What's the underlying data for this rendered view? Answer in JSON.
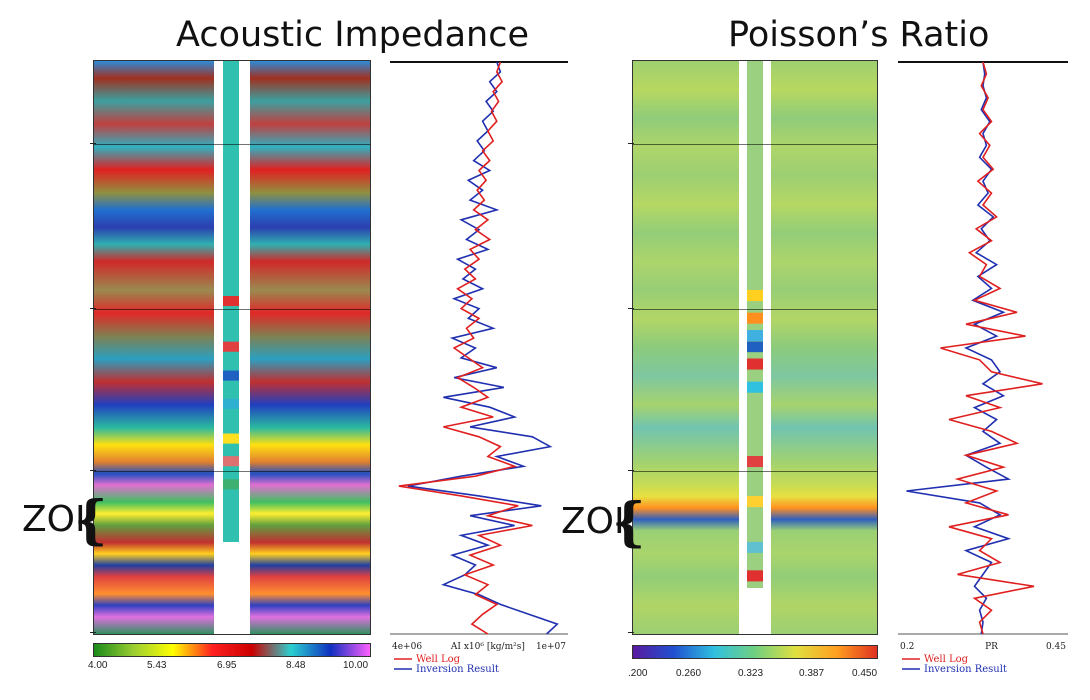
{
  "panels": [
    {
      "title": "Acoustic Impedance",
      "zoi_label": "ZOI",
      "colorbar": {
        "ticks": [
          "4.00",
          "5.43",
          "6.95",
          "8.48",
          "10.00"
        ],
        "colors": [
          "#1a8a1a",
          "#9acd32",
          "#ffff00",
          "#ff2020",
          "#cc0000",
          "#2ad0d0",
          "#1030c0",
          "#ff60ff"
        ]
      },
      "bands": [
        {
          "y": 0.0,
          "c": "#2e8cd8"
        },
        {
          "y": 0.03,
          "c": "#a03020"
        },
        {
          "y": 0.07,
          "c": "#3ca0a0"
        },
        {
          "y": 0.11,
          "c": "#c04040"
        },
        {
          "y": 0.15,
          "c": "#30b0c0"
        },
        {
          "y": 0.19,
          "c": "#e02020"
        },
        {
          "y": 0.23,
          "c": "#909040"
        },
        {
          "y": 0.26,
          "c": "#2070d0"
        },
        {
          "y": 0.29,
          "c": "#2b3fb0"
        },
        {
          "y": 0.32,
          "c": "#30b0b0"
        },
        {
          "y": 0.35,
          "c": "#d02828"
        },
        {
          "y": 0.4,
          "c": "#9a8a50"
        },
        {
          "y": 0.44,
          "c": "#e02828"
        },
        {
          "y": 0.48,
          "c": "#808050"
        },
        {
          "y": 0.52,
          "c": "#2aa0c0"
        },
        {
          "y": 0.56,
          "c": "#c03030"
        },
        {
          "y": 0.6,
          "c": "#2040c0"
        },
        {
          "y": 0.64,
          "c": "#2abaa0"
        },
        {
          "y": 0.67,
          "c": "#ffe010"
        },
        {
          "y": 0.7,
          "c": "#e08030"
        },
        {
          "y": 0.72,
          "c": "#2050c0"
        },
        {
          "y": 0.74,
          "c": "#e070d0"
        },
        {
          "y": 0.77,
          "c": "#40c060"
        },
        {
          "y": 0.79,
          "c": "#ffee30"
        },
        {
          "y": 0.81,
          "c": "#60a040"
        },
        {
          "y": 0.84,
          "c": "#c03030"
        },
        {
          "y": 0.86,
          "c": "#ffd020"
        },
        {
          "y": 0.88,
          "c": "#2040a0"
        },
        {
          "y": 0.9,
          "c": "#e04040"
        },
        {
          "y": 0.93,
          "c": "#ff9030"
        },
        {
          "y": 0.95,
          "c": "#2f40c0"
        },
        {
          "y": 0.97,
          "c": "#e070e0"
        },
        {
          "y": 1.0,
          "c": "#309060"
        }
      ],
      "well_column": {
        "fill_to": 0.84,
        "base": "#30c0b0",
        "accents": [
          {
            "y": 0.42,
            "c": "#e03030"
          },
          {
            "y": 0.5,
            "c": "#e04040"
          },
          {
            "y": 0.55,
            "c": "#2060c0"
          },
          {
            "y": 0.6,
            "c": "#2fb0d0"
          },
          {
            "y": 0.66,
            "c": "#ffe020"
          },
          {
            "y": 0.7,
            "c": "#e07070"
          },
          {
            "y": 0.74,
            "c": "#40b070"
          }
        ]
      },
      "log": {
        "axis_min": "4e+06",
        "axis_max": "1e+07",
        "axis_label": "AI x10⁶ [kg/m²s]",
        "legend": [
          {
            "label": "Well Log",
            "color": "#e02020"
          },
          {
            "label": "Inversion Result",
            "color": "#2030b0"
          }
        ],
        "red": [
          0.62,
          0.6,
          0.63,
          0.58,
          0.61,
          0.57,
          0.6,
          0.55,
          0.58,
          0.52,
          0.56,
          0.5,
          0.54,
          0.49,
          0.53,
          0.47,
          0.55,
          0.48,
          0.56,
          0.45,
          0.5,
          0.42,
          0.48,
          0.38,
          0.46,
          0.4,
          0.5,
          0.43,
          0.47,
          0.36,
          0.44,
          0.52,
          0.38,
          0.47,
          0.55,
          0.4,
          0.58,
          0.3,
          0.5,
          0.62,
          0.55,
          0.7,
          0.48,
          0.05,
          0.4,
          0.72,
          0.55,
          0.8,
          0.5,
          0.62,
          0.45,
          0.58,
          0.42,
          0.55,
          0.48,
          0.6,
          0.52,
          0.46,
          0.55
        ],
        "blue": [
          0.6,
          0.62,
          0.56,
          0.6,
          0.54,
          0.58,
          0.52,
          0.55,
          0.49,
          0.53,
          0.47,
          0.56,
          0.44,
          0.52,
          0.45,
          0.6,
          0.4,
          0.5,
          0.43,
          0.55,
          0.38,
          0.48,
          0.41,
          0.52,
          0.36,
          0.5,
          0.44,
          0.58,
          0.35,
          0.48,
          0.4,
          0.6,
          0.36,
          0.64,
          0.3,
          0.56,
          0.7,
          0.45,
          0.8,
          0.9,
          0.6,
          0.75,
          0.4,
          0.1,
          0.5,
          0.85,
          0.45,
          0.7,
          0.4,
          0.55,
          0.35,
          0.48,
          0.42,
          0.3,
          0.5,
          0.62,
          0.78,
          0.94,
          0.88
        ]
      }
    },
    {
      "title": "Poisson’s Ratio",
      "zoi_label": "ZOI",
      "colorbar": {
        "ticks": [
          ".200",
          "0.260",
          "0.323",
          "0.387",
          "0.450"
        ],
        "colors": [
          "#5a1aa0",
          "#2050d0",
          "#30c0e0",
          "#70d080",
          "#e0e040",
          "#ffa020",
          "#e03020"
        ]
      },
      "bands": [
        {
          "y": 0.0,
          "c": "#9ecf70"
        },
        {
          "y": 0.05,
          "c": "#b8d860"
        },
        {
          "y": 0.1,
          "c": "#8fcc7a"
        },
        {
          "y": 0.15,
          "c": "#aed56a"
        },
        {
          "y": 0.2,
          "c": "#9ccf72"
        },
        {
          "y": 0.25,
          "c": "#b5d764"
        },
        {
          "y": 0.3,
          "c": "#93cd78"
        },
        {
          "y": 0.35,
          "c": "#acd46b"
        },
        {
          "y": 0.4,
          "c": "#97ce75"
        },
        {
          "y": 0.45,
          "c": "#b2d666"
        },
        {
          "y": 0.5,
          "c": "#8ccb7c"
        },
        {
          "y": 0.55,
          "c": "#7ec7a0"
        },
        {
          "y": 0.6,
          "c": "#a6d36e"
        },
        {
          "y": 0.64,
          "c": "#70c4b0"
        },
        {
          "y": 0.7,
          "c": "#a2d270"
        },
        {
          "y": 0.74,
          "c": "#c8dc55"
        },
        {
          "y": 0.76,
          "c": "#e8e040"
        },
        {
          "y": 0.78,
          "c": "#ff9020"
        },
        {
          "y": 0.8,
          "c": "#3060c0"
        },
        {
          "y": 0.82,
          "c": "#9ad075"
        },
        {
          "y": 0.86,
          "c": "#aad46c"
        },
        {
          "y": 0.9,
          "c": "#92cd78"
        },
        {
          "y": 0.95,
          "c": "#b0d566"
        },
        {
          "y": 1.0,
          "c": "#9ccf72"
        }
      ],
      "well_column": {
        "fill_to": 0.92,
        "base": "#9ad080",
        "accents": [
          {
            "y": 0.41,
            "c": "#ffd020"
          },
          {
            "y": 0.45,
            "c": "#ff9020"
          },
          {
            "y": 0.48,
            "c": "#40b0e0"
          },
          {
            "y": 0.5,
            "c": "#2060c0"
          },
          {
            "y": 0.53,
            "c": "#e03030"
          },
          {
            "y": 0.57,
            "c": "#30c0e0"
          },
          {
            "y": 0.7,
            "c": "#e04040"
          },
          {
            "y": 0.77,
            "c": "#ffd030"
          },
          {
            "y": 0.85,
            "c": "#60c0d0"
          },
          {
            "y": 0.9,
            "c": "#e03030"
          }
        ]
      },
      "log": {
        "axis_min": "0.2",
        "axis_max": "0.45",
        "axis_label": "PR",
        "legend": [
          {
            "label": "Well Log",
            "color": "#e02020"
          },
          {
            "label": "Inversion Result",
            "color": "#2030b0"
          }
        ],
        "red": [
          0.5,
          0.52,
          0.49,
          0.53,
          0.5,
          0.55,
          0.48,
          0.54,
          0.5,
          0.56,
          0.47,
          0.55,
          0.5,
          0.58,
          0.46,
          0.55,
          0.42,
          0.52,
          0.48,
          0.6,
          0.45,
          0.7,
          0.4,
          0.75,
          0.25,
          0.48,
          0.55,
          0.85,
          0.4,
          0.6,
          0.3,
          0.55,
          0.7,
          0.4,
          0.62,
          0.35,
          0.58,
          0.4,
          0.65,
          0.3,
          0.55,
          0.48,
          0.6,
          0.35,
          0.8,
          0.45,
          0.55,
          0.48,
          0.5
        ],
        "blue": [
          0.5,
          0.51,
          0.5,
          0.52,
          0.49,
          0.54,
          0.5,
          0.52,
          0.48,
          0.55,
          0.5,
          0.53,
          0.47,
          0.56,
          0.49,
          0.54,
          0.46,
          0.58,
          0.47,
          0.55,
          0.44,
          0.62,
          0.45,
          0.58,
          0.4,
          0.55,
          0.6,
          0.5,
          0.62,
          0.45,
          0.58,
          0.5,
          0.6,
          0.4,
          0.52,
          0.65,
          0.05,
          0.48,
          0.6,
          0.45,
          0.65,
          0.4,
          0.55,
          0.5,
          0.45,
          0.52,
          0.48,
          0.5,
          0.49
        ]
      }
    }
  ]
}
